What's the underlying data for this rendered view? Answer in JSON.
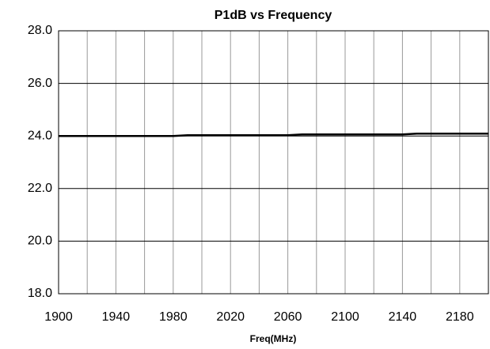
{
  "chart_data": {
    "type": "line",
    "title": "P1dB vs Frequency",
    "xlabel": "Freq(MHz)",
    "x": [
      1900,
      1980,
      1990,
      2060,
      2070,
      2140,
      2150,
      2200
    ],
    "series": [
      {
        "color": "#000000",
        "values": [
          24.0,
          24.0,
          24.03,
          24.03,
          24.06,
          24.06,
          24.09,
          24.09
        ]
      }
    ],
    "xlim": [
      1900,
      2200
    ],
    "xticks": [
      1900,
      1940,
      1980,
      2020,
      2060,
      2100,
      2140,
      2180
    ],
    "xminor": [
      1920,
      1960,
      2000,
      2040,
      2080,
      2120,
      2160,
      2200
    ],
    "ylim": [
      18,
      28
    ],
    "yticks": [
      {
        "value": 18,
        "label": "18.0"
      },
      {
        "value": 20,
        "label": "20.0"
      },
      {
        "value": 22,
        "label": "22.0"
      },
      {
        "value": 24,
        "label": "24.0"
      },
      {
        "value": 26,
        "label": "26.0"
      },
      {
        "value": 28,
        "label": "28.0"
      }
    ],
    "grid": true
  }
}
